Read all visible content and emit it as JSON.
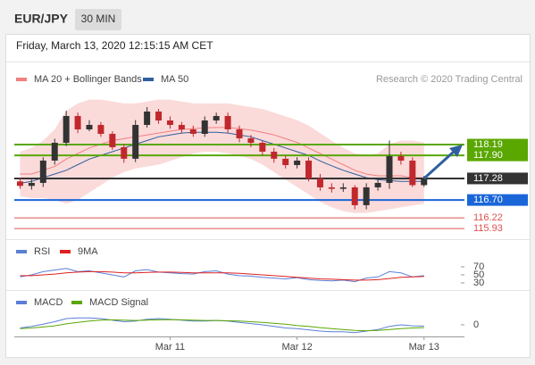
{
  "header": {
    "symbol": "EUR/JPY",
    "timeframe": "30 MIN",
    "datetime": "Friday, March 13, 2020 12:15:15 AM CET"
  },
  "chart_data": {
    "type": "candlestick",
    "source": "Research © 2020 Trading Central",
    "xlim": [
      -0.5,
      38.5
    ],
    "xticks": [
      {
        "value": 13,
        "label": "Mar 11"
      },
      {
        "value": 24,
        "label": "Mar 12"
      },
      {
        "value": 35,
        "label": "Mar 13"
      }
    ],
    "ylim": [
      115.79,
      119.68
    ],
    "up_color": "#333333",
    "down_color": "#c0282d",
    "open": [
      117.2,
      117.08,
      117.16,
      117.76,
      118.24,
      118.96,
      118.6,
      118.72,
      118.48,
      118.12,
      117.81,
      118.72,
      119.08,
      118.84,
      118.72,
      118.6,
      118.48,
      118.84,
      118.96,
      118.6,
      118.36,
      118.24,
      118.0,
      117.81,
      117.64,
      117.76,
      117.28,
      117.04,
      117.0,
      117.04,
      116.56,
      117.04,
      117.16,
      117.88,
      117.76,
      117.1
    ],
    "high": [
      117.3,
      117.25,
      117.85,
      118.35,
      119.1,
      119.05,
      118.85,
      118.8,
      118.55,
      118.2,
      118.85,
      119.2,
      119.15,
      118.95,
      118.8,
      118.7,
      118.95,
      119.05,
      119.05,
      118.7,
      118.45,
      118.3,
      118.1,
      117.9,
      117.85,
      117.85,
      117.4,
      117.15,
      117.15,
      117.1,
      117.15,
      117.25,
      118.3,
      118.0,
      117.85,
      117.35
    ],
    "low": [
      117.0,
      116.98,
      117.05,
      117.65,
      118.15,
      118.5,
      118.55,
      118.4,
      118.05,
      117.7,
      117.72,
      118.65,
      118.75,
      118.62,
      118.5,
      118.4,
      118.4,
      118.75,
      118.5,
      118.25,
      118.12,
      117.9,
      117.7,
      117.55,
      117.55,
      117.2,
      116.95,
      116.9,
      116.92,
      116.45,
      116.45,
      116.95,
      117.0,
      117.65,
      117.05,
      117.05
    ],
    "close": [
      117.08,
      117.16,
      117.76,
      118.24,
      118.96,
      118.6,
      118.72,
      118.48,
      118.12,
      117.81,
      118.72,
      119.08,
      118.84,
      118.72,
      118.6,
      118.48,
      118.84,
      118.96,
      118.6,
      118.36,
      118.24,
      118.0,
      117.81,
      117.64,
      117.76,
      117.28,
      117.04,
      117.0,
      117.04,
      116.56,
      117.04,
      117.16,
      117.88,
      117.76,
      117.1,
      117.28
    ],
    "overlays": [
      {
        "name": "MA 20 + Bollinger Bands",
        "color": "#f08080",
        "band_color": "#fbdada",
        "values": [
          117.4,
          117.4,
          117.5,
          117.6,
          117.8,
          117.95,
          118.1,
          118.2,
          118.3,
          118.35,
          118.4,
          118.45,
          118.5,
          118.55,
          118.6,
          118.62,
          118.64,
          118.65,
          118.65,
          118.62,
          118.58,
          118.52,
          118.45,
          118.35,
          118.25,
          118.1,
          117.95,
          117.8,
          117.65,
          117.5,
          117.4,
          117.35,
          117.35,
          117.35,
          117.3,
          117.3
        ],
        "upper": [
          118.0,
          118.1,
          118.3,
          118.6,
          119.1,
          119.3,
          119.4,
          119.4,
          119.35,
          119.3,
          119.3,
          119.35,
          119.4,
          119.4,
          119.35,
          119.3,
          119.3,
          119.3,
          119.3,
          119.25,
          119.2,
          119.15,
          119.05,
          118.95,
          118.85,
          118.7,
          118.5,
          118.3,
          118.1,
          117.95,
          117.9,
          117.95,
          118.2,
          118.3,
          118.3,
          118.25
        ],
        "lower": [
          116.8,
          116.75,
          116.75,
          116.7,
          116.6,
          116.7,
          116.9,
          117.1,
          117.3,
          117.45,
          117.55,
          117.6,
          117.65,
          117.75,
          117.85,
          117.95,
          118.0,
          118.0,
          117.95,
          117.9,
          117.8,
          117.65,
          117.45,
          117.25,
          117.05,
          116.85,
          116.65,
          116.5,
          116.4,
          116.35,
          116.35,
          116.4,
          116.45,
          116.5,
          116.55,
          116.6
        ]
      },
      {
        "name": "MA 50",
        "color": "#2f5f9e",
        "values": [
          117.15,
          117.2,
          117.3,
          117.4,
          117.5,
          117.65,
          117.8,
          117.9,
          118.0,
          118.1,
          118.2,
          118.3,
          118.4,
          118.45,
          118.5,
          118.52,
          118.52,
          118.52,
          118.5,
          118.45,
          118.4,
          118.3,
          118.2,
          118.1,
          118.0,
          117.9,
          117.75,
          117.62,
          117.5,
          117.4,
          117.3,
          117.25,
          117.22,
          117.2,
          117.2,
          117.2
        ]
      }
    ],
    "levels": [
      {
        "value": 118.19,
        "label": "118.19",
        "color": "#5aa700",
        "style": "box"
      },
      {
        "value": 117.9,
        "label": "117.90",
        "color": "#5aa700",
        "style": "box"
      },
      {
        "value": 117.28,
        "label": "117.28",
        "color": "#333333",
        "style": "box"
      },
      {
        "value": 116.7,
        "label": "116.70",
        "color": "#1a66d9",
        "style": "box"
      },
      {
        "value": 116.22,
        "label": "116.22",
        "color": "#e05050",
        "style": "text"
      },
      {
        "value": 115.93,
        "label": "115.93",
        "color": "#e05050",
        "style": "text"
      }
    ],
    "rsi": {
      "ylim": [
        10,
        90
      ],
      "yticks": [
        70,
        50,
        30
      ],
      "series": [
        {
          "name": "RSI",
          "color": "#5b7fd6",
          "values": [
            45,
            50,
            58,
            62,
            66,
            58,
            60,
            55,
            50,
            45,
            60,
            63,
            57,
            55,
            53,
            52,
            58,
            60,
            52,
            48,
            47,
            44,
            42,
            40,
            43,
            38,
            36,
            35,
            37,
            33,
            42,
            45,
            58,
            55,
            45,
            48
          ]
        },
        {
          "name": "9MA",
          "color": "#e02020",
          "values": [
            48,
            48,
            50,
            52,
            55,
            57,
            58,
            58,
            57,
            55,
            55,
            56,
            57,
            57,
            56,
            55,
            55,
            55,
            55,
            54,
            52,
            50,
            48,
            46,
            44,
            42,
            40,
            39,
            38,
            37,
            37,
            38,
            41,
            44,
            45,
            46
          ]
        }
      ]
    },
    "macd": {
      "ylim": [
        -0.4,
        0.4
      ],
      "yticks": [
        0
      ],
      "series": [
        {
          "name": "MACD",
          "color": "#5b7fd6",
          "values": [
            -0.1,
            -0.05,
            0.02,
            0.1,
            0.2,
            0.22,
            0.22,
            0.2,
            0.15,
            0.1,
            0.12,
            0.18,
            0.2,
            0.18,
            0.15,
            0.12,
            0.12,
            0.14,
            0.12,
            0.08,
            0.04,
            0,
            -0.05,
            -0.1,
            -0.12,
            -0.16,
            -0.2,
            -0.22,
            -0.22,
            -0.25,
            -0.2,
            -0.15,
            -0.05,
            0,
            -0.03,
            -0.04
          ]
        },
        {
          "name": "MACD Signal",
          "color": "#5aa700",
          "values": [
            -0.12,
            -0.1,
            -0.07,
            -0.03,
            0.03,
            0.08,
            0.12,
            0.15,
            0.16,
            0.15,
            0.14,
            0.15,
            0.16,
            0.17,
            0.16,
            0.15,
            0.14,
            0.14,
            0.13,
            0.12,
            0.1,
            0.08,
            0.05,
            0.02,
            -0.02,
            -0.05,
            -0.09,
            -0.12,
            -0.15,
            -0.18,
            -0.19,
            -0.18,
            -0.15,
            -0.12,
            -0.1,
            -0.09
          ]
        }
      ]
    }
  }
}
